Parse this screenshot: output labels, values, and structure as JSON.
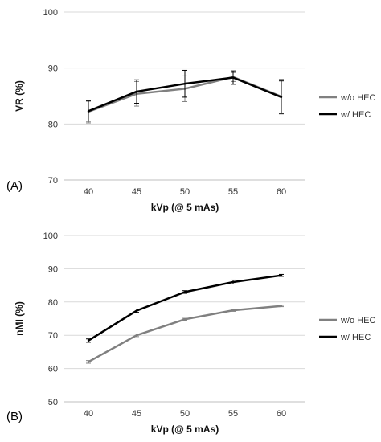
{
  "chart_data": [
    {
      "type": "line",
      "panel_label": "(A)",
      "xlabel": "kVp (@ 5 mAs)",
      "ylabel": "VR (%)",
      "x": [
        "40",
        "45",
        "50",
        "55",
        "60"
      ],
      "ylim": [
        70,
        100
      ],
      "yticks": [
        "70",
        "80",
        "90",
        "100"
      ],
      "grid": "horizontal",
      "legend": "right",
      "series": [
        {
          "name": "w/o HEC",
          "color": "#808080",
          "values": [
            82.2,
            85.4,
            86.3,
            88.4,
            84.9
          ],
          "err": [
            2.0,
            2.2,
            2.3,
            0.8,
            3.1
          ]
        },
        {
          "name": "w/ HEC",
          "color": "#000000",
          "values": [
            82.3,
            85.8,
            87.2,
            88.3,
            84.8
          ],
          "err": [
            1.8,
            2.1,
            2.4,
            1.2,
            2.9
          ]
        }
      ]
    },
    {
      "type": "line",
      "panel_label": "(B)",
      "xlabel": "kVp (@ 5 mAs)",
      "ylabel": "nMI (%)",
      "x": [
        "40",
        "45",
        "50",
        "55",
        "60"
      ],
      "ylim": [
        50,
        100
      ],
      "yticks": [
        "50",
        "60",
        "70",
        "80",
        "90",
        "100"
      ],
      "grid": "horizontal",
      "legend": "right",
      "series": [
        {
          "name": "w/o HEC",
          "color": "#808080",
          "values": [
            62.0,
            70.0,
            74.8,
            77.5,
            78.8
          ],
          "err": [
            0.4,
            0.4,
            0.3,
            0.3,
            0.2
          ]
        },
        {
          "name": "w/ HEC",
          "color": "#000000",
          "values": [
            68.4,
            77.4,
            83.0,
            86.0,
            88.0
          ],
          "err": [
            0.5,
            0.5,
            0.4,
            0.6,
            0.3
          ]
        }
      ]
    }
  ]
}
